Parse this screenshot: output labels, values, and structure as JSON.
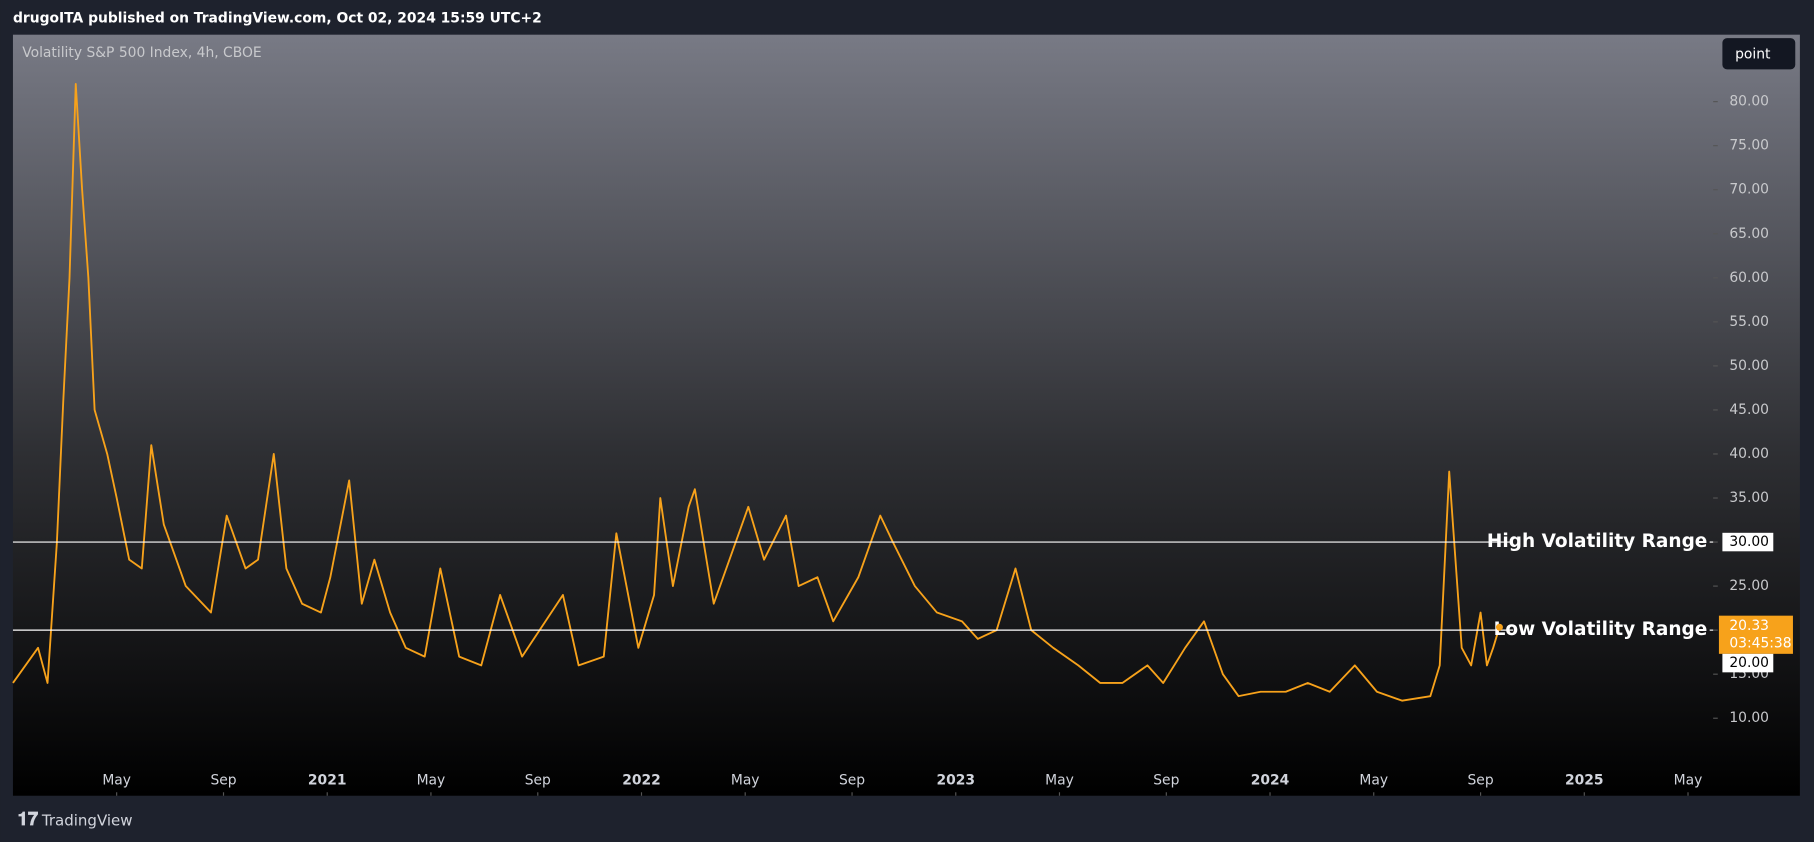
{
  "header": {
    "text": "drugoITA published on TradingView.com, Oct 02, 2024 15:59 UTC+2"
  },
  "toolbar": {
    "button": "point"
  },
  "footer": {
    "brand": "TradingView"
  },
  "chart_data": {
    "type": "line",
    "title": "Volatility S&P 500 Index, 4h, CBOE",
    "color": "#f7a21b",
    "x": [
      2020.0,
      2020.08,
      2020.11,
      2020.14,
      2020.16,
      2020.18,
      2020.2,
      2020.22,
      2020.24,
      2020.26,
      2020.3,
      2020.33,
      2020.37,
      2020.41,
      2020.44,
      2020.48,
      2020.52,
      2020.55,
      2020.63,
      2020.68,
      2020.74,
      2020.78,
      2020.83,
      2020.87,
      2020.92,
      2020.98,
      2021.01,
      2021.07,
      2021.11,
      2021.15,
      2021.2,
      2021.25,
      2021.31,
      2021.36,
      2021.42,
      2021.49,
      2021.55,
      2021.62,
      2021.75,
      2021.8,
      2021.88,
      2021.92,
      2021.99,
      2022.04,
      2022.06,
      2022.1,
      2022.15,
      2022.17,
      2022.23,
      2022.34,
      2022.39,
      2022.46,
      2022.5,
      2022.56,
      2022.61,
      2022.69,
      2022.76,
      2022.8,
      2022.87,
      2022.94,
      2023.02,
      2023.07,
      2023.13,
      2023.19,
      2023.24,
      2023.31,
      2023.39,
      2023.46,
      2023.53,
      2023.61,
      2023.66,
      2023.73,
      2023.79,
      2023.85,
      2023.9,
      2023.97,
      2024.05,
      2024.12,
      2024.19,
      2024.27,
      2024.34,
      2024.42,
      2024.51,
      2024.54,
      2024.57,
      2024.61,
      2024.64,
      2024.67,
      2024.69,
      2024.71,
      2024.73
    ],
    "values": [
      14,
      18,
      14,
      30,
      46,
      60,
      82,
      70,
      60,
      45,
      40,
      35,
      28,
      27,
      41,
      32,
      28,
      25,
      22,
      33,
      27,
      28,
      40,
      27,
      23,
      22,
      26,
      37,
      23,
      28,
      22,
      18,
      17,
      27,
      17,
      16,
      24,
      17,
      24,
      16,
      17,
      31,
      18,
      24,
      35,
      25,
      34,
      36,
      23,
      34,
      28,
      33,
      25,
      26,
      21,
      26,
      33,
      30,
      25,
      22,
      21,
      19,
      20,
      27,
      20,
      18,
      16,
      14,
      14,
      16,
      14,
      18,
      21,
      15,
      12.5,
      13,
      13,
      14,
      13,
      16,
      13,
      12,
      12.5,
      16,
      38,
      18,
      16,
      22,
      16,
      18,
      20.33
    ],
    "ylim": [
      1.2,
      87.6
    ],
    "yticks": [
      {
        "value": 10,
        "label": "10.00"
      },
      {
        "value": 15,
        "label": "15.00"
      },
      {
        "value": 20,
        "label": "20.00"
      },
      {
        "value": 25,
        "label": "25.00"
      },
      {
        "value": 30,
        "label": "30.00"
      },
      {
        "value": 35,
        "label": "35.00"
      },
      {
        "value": 40,
        "label": "40.00"
      },
      {
        "value": 45,
        "label": "45.00"
      },
      {
        "value": 50,
        "label": "50.00"
      },
      {
        "value": 55,
        "label": "55.00"
      },
      {
        "value": 60,
        "label": "60.00"
      },
      {
        "value": 65,
        "label": "65.00"
      },
      {
        "value": 70,
        "label": "70.00"
      },
      {
        "value": 75,
        "label": "75.00"
      },
      {
        "value": 80,
        "label": "80.00"
      }
    ],
    "xlim": [
      2020.0,
      2025.41
    ],
    "xticks": [
      {
        "value": 2020.33,
        "label": "May"
      },
      {
        "value": 2020.67,
        "label": "Sep"
      },
      {
        "value": 2021,
        "label": "2021"
      },
      {
        "value": 2021.33,
        "label": "May"
      },
      {
        "value": 2021.67,
        "label": "Sep"
      },
      {
        "value": 2022,
        "label": "2022"
      },
      {
        "value": 2022.33,
        "label": "May"
      },
      {
        "value": 2022.67,
        "label": "Sep"
      },
      {
        "value": 2023,
        "label": "2023"
      },
      {
        "value": 2023.33,
        "label": "May"
      },
      {
        "value": 2023.67,
        "label": "Sep"
      },
      {
        "value": 2024,
        "label": "2024"
      },
      {
        "value": 2024.33,
        "label": "May"
      },
      {
        "value": 2024.67,
        "label": "Sep"
      },
      {
        "value": 2025,
        "label": "2025"
      },
      {
        "value": 2025.33,
        "label": "May"
      }
    ],
    "hlines": [
      {
        "value": 30,
        "label": "High Volatility Range",
        "price_label": "30.00"
      },
      {
        "value": 20,
        "label": "Low Volatility Range",
        "price_label": "20.00"
      }
    ],
    "last_price": {
      "value": 20.33,
      "countdown": "03:45:38"
    }
  }
}
